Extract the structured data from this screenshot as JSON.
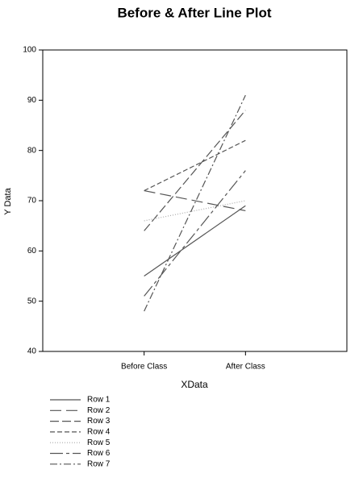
{
  "chart_data": {
    "type": "line",
    "title": "Before & After Line Plot",
    "x_label": "XData",
    "y_label": "Y Data",
    "categories": [
      "Before Class",
      "After Class"
    ],
    "series": [
      {
        "name": "Row 1",
        "color": "#555555",
        "dash": "none",
        "values": [
          55,
          69
        ]
      },
      {
        "name": "Row 2",
        "color": "#555555",
        "dash": "14,6",
        "values": [
          72,
          68
        ]
      },
      {
        "name": "Row 3",
        "color": "#555555",
        "dash": "11,4",
        "values": [
          64,
          88
        ]
      },
      {
        "name": "Row 4",
        "color": "#555555",
        "dash": "6,3",
        "values": [
          72,
          82
        ]
      },
      {
        "name": "Row 5",
        "color": "#aaaaaa",
        "dash": "1,2",
        "values": [
          66,
          70
        ]
      },
      {
        "name": "Row 6",
        "color": "#555555",
        "dash": "16,4,4,4",
        "values": [
          51,
          76
        ]
      },
      {
        "name": "Row 7",
        "color": "#555555",
        "dash": "9,3,2,3",
        "values": [
          48,
          91
        ]
      }
    ],
    "ylim": [
      40,
      100
    ],
    "yticks": [
      40,
      50,
      60,
      70,
      80,
      90,
      100
    ],
    "grid": false,
    "legend": "bottom"
  }
}
